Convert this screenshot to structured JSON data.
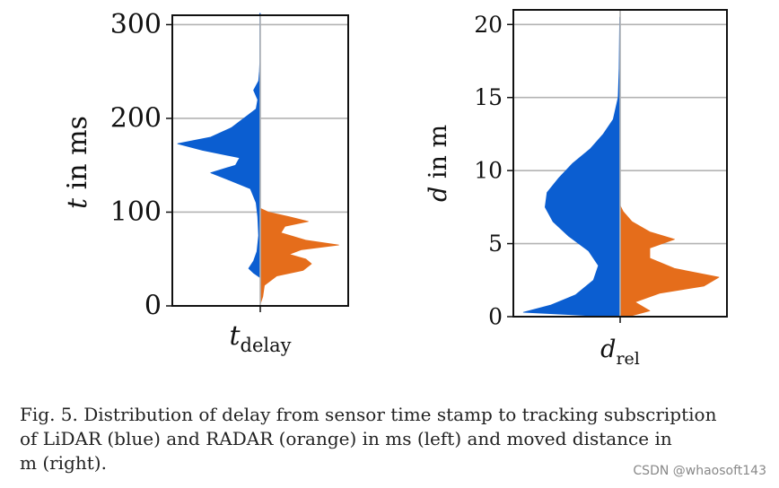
{
  "chart_data": [
    {
      "type": "violin",
      "panel": "left",
      "xlabel": "t_delay",
      "xlabel_main": "t",
      "xlabel_sub": "delay",
      "ylabel": "t in ms",
      "ylabel_var": "t",
      "ylabel_rest": " in ms",
      "ylim": [
        0,
        310
      ],
      "yticks": [
        0,
        100,
        200,
        300
      ],
      "grid": true,
      "series": [
        {
          "name": "LiDAR",
          "side": "left",
          "color": "#0b5ed1",
          "profile": [
            [
              30,
              0
            ],
            [
              35,
              0.08
            ],
            [
              40,
              0.14
            ],
            [
              48,
              0.08
            ],
            [
              58,
              0.04
            ],
            [
              75,
              0.02
            ],
            [
              95,
              0.03
            ],
            [
              110,
              0.05
            ],
            [
              125,
              0.12
            ],
            [
              135,
              0.4
            ],
            [
              142,
              0.6
            ],
            [
              150,
              0.3
            ],
            [
              158,
              0.25
            ],
            [
              166,
              0.7
            ],
            [
              173,
              1.0
            ],
            [
              180,
              0.6
            ],
            [
              190,
              0.35
            ],
            [
              200,
              0.2
            ],
            [
              210,
              0.05
            ],
            [
              220,
              0.03
            ],
            [
              230,
              0.08
            ],
            [
              240,
              0.02
            ],
            [
              250,
              0.01
            ],
            [
              260,
              0.005
            ],
            [
              312,
              0.005
            ]
          ]
        },
        {
          "name": "RADAR",
          "side": "right",
          "color": "#e56d1b",
          "profile": [
            [
              2,
              0
            ],
            [
              10,
              0.03
            ],
            [
              22,
              0.05
            ],
            [
              32,
              0.2
            ],
            [
              38,
              0.52
            ],
            [
              45,
              0.62
            ],
            [
              50,
              0.55
            ],
            [
              55,
              0.35
            ],
            [
              60,
              0.5
            ],
            [
              65,
              0.95
            ],
            [
              70,
              0.55
            ],
            [
              78,
              0.25
            ],
            [
              85,
              0.3
            ],
            [
              90,
              0.58
            ],
            [
              95,
              0.35
            ],
            [
              100,
              0.1
            ],
            [
              104,
              0
            ]
          ]
        }
      ]
    },
    {
      "type": "violin",
      "panel": "right",
      "xlabel": "d_rel",
      "xlabel_main": "d",
      "xlabel_sub": "rel",
      "ylabel": "d in m",
      "ylabel_var": "d",
      "ylabel_rest": " in m",
      "ylim": [
        0,
        21
      ],
      "yticks": [
        0,
        5,
        10,
        15,
        20
      ],
      "grid": true,
      "series": [
        {
          "name": "LiDAR",
          "side": "left",
          "color": "#0b5ed1",
          "profile": [
            [
              0,
              0.1
            ],
            [
              0.3,
              0.98
            ],
            [
              0.8,
              0.7
            ],
            [
              1.5,
              0.45
            ],
            [
              2.5,
              0.27
            ],
            [
              3.5,
              0.22
            ],
            [
              4.5,
              0.32
            ],
            [
              5.5,
              0.52
            ],
            [
              6.5,
              0.68
            ],
            [
              7.5,
              0.76
            ],
            [
              8.5,
              0.74
            ],
            [
              9.5,
              0.62
            ],
            [
              10.5,
              0.48
            ],
            [
              11.5,
              0.3
            ],
            [
              12.5,
              0.17
            ],
            [
              13.5,
              0.07
            ],
            [
              15,
              0.02
            ],
            [
              17,
              0.01
            ],
            [
              20.5,
              0.005
            ]
          ]
        },
        {
          "name": "RADAR",
          "side": "right",
          "color": "#e56d1b",
          "profile": [
            [
              0,
              0.08
            ],
            [
              0.4,
              0.3
            ],
            [
              1,
              0.15
            ],
            [
              1.6,
              0.4
            ],
            [
              2.1,
              0.85
            ],
            [
              2.7,
              1.0
            ],
            [
              3.3,
              0.55
            ],
            [
              4,
              0.3
            ],
            [
              4.7,
              0.3
            ],
            [
              5.3,
              0.55
            ],
            [
              5.8,
              0.3
            ],
            [
              6.5,
              0.12
            ],
            [
              7.2,
              0.03
            ],
            [
              7.6,
              0
            ]
          ]
        }
      ]
    }
  ],
  "caption": {
    "line1": "Fig. 5.  Distribution of delay from sensor time stamp to tracking subscription",
    "line2": "of LiDAR (blue) and RADAR (orange) in ms (left) and moved distance in",
    "line3": "m (right)."
  },
  "watermark": "CSDN @whaosoft143"
}
